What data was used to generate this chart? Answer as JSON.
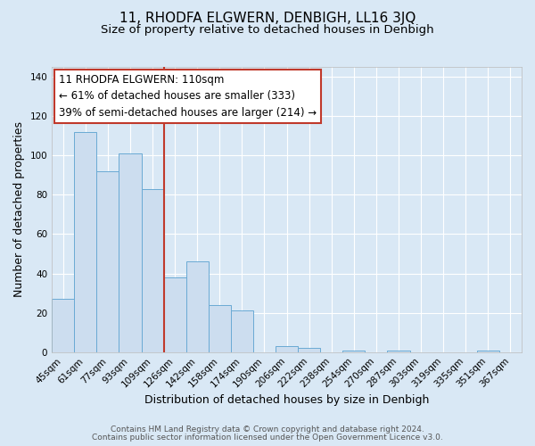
{
  "title": "11, RHODFA ELGWERN, DENBIGH, LL16 3JQ",
  "subtitle": "Size of property relative to detached houses in Denbigh",
  "xlabel": "Distribution of detached houses by size in Denbigh",
  "ylabel": "Number of detached properties",
  "footer_line1": "Contains HM Land Registry data © Crown copyright and database right 2024.",
  "footer_line2": "Contains public sector information licensed under the Open Government Licence v3.0.",
  "bar_labels": [
    "45sqm",
    "61sqm",
    "77sqm",
    "93sqm",
    "109sqm",
    "126sqm",
    "142sqm",
    "158sqm",
    "174sqm",
    "190sqm",
    "206sqm",
    "222sqm",
    "238sqm",
    "254sqm",
    "270sqm",
    "287sqm",
    "303sqm",
    "319sqm",
    "335sqm",
    "351sqm",
    "367sqm"
  ],
  "bar_values": [
    27,
    112,
    92,
    101,
    83,
    38,
    46,
    24,
    21,
    0,
    3,
    2,
    0,
    1,
    0,
    1,
    0,
    0,
    0,
    1,
    0
  ],
  "bar_color": "#ccddef",
  "bar_edge_color": "#6aaad4",
  "highlight_line_color": "#c0392b",
  "highlight_bar_index": 4,
  "annotation_text_line1": "11 RHODFA ELGWERN: 110sqm",
  "annotation_text_line2": "← 61% of detached houses are smaller (333)",
  "annotation_text_line3": "39% of semi-detached houses are larger (214) →",
  "annotation_box_edge_color": "#c0392b",
  "annotation_box_face_color": "#ffffff",
  "ylim": [
    0,
    145
  ],
  "yticks": [
    0,
    20,
    40,
    60,
    80,
    100,
    120,
    140
  ],
  "background_color": "#d9e8f5",
  "plot_bg_color": "#d9e8f5",
  "grid_color": "#ffffff",
  "title_fontsize": 11,
  "subtitle_fontsize": 9.5,
  "axis_label_fontsize": 9,
  "tick_fontsize": 7.5,
  "annotation_fontsize": 8.5,
  "footer_fontsize": 6.5
}
